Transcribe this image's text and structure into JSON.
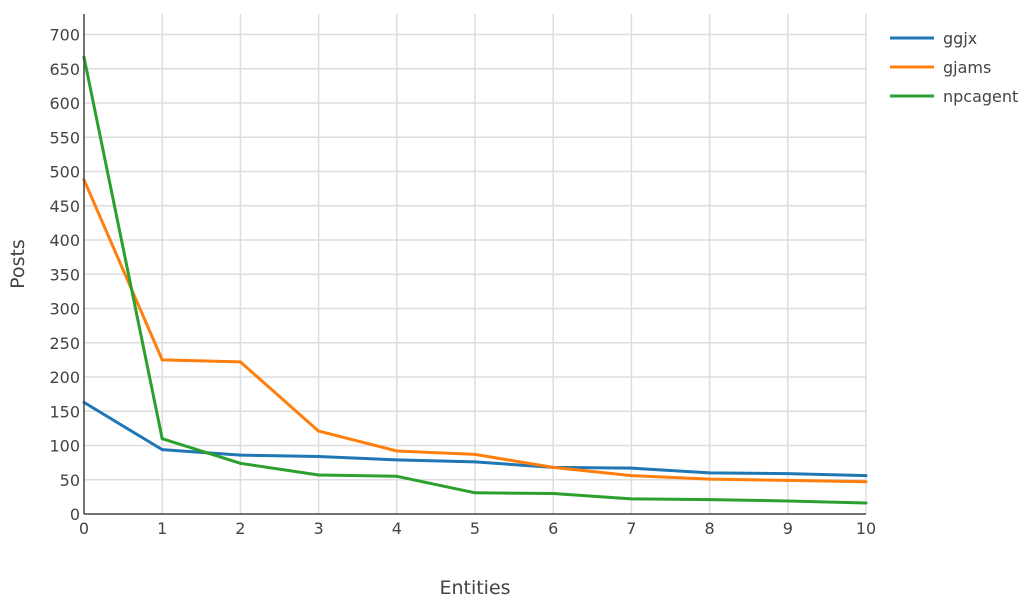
{
  "chart_data": {
    "type": "line",
    "xlabel": "Entities",
    "ylabel": "Posts",
    "xlim": [
      0,
      10
    ],
    "ylim": [
      0,
      730
    ],
    "x": [
      0,
      1,
      2,
      3,
      4,
      5,
      6,
      7,
      8,
      9,
      10
    ],
    "x_ticks": [
      "0",
      "1",
      "2",
      "3",
      "4",
      "5",
      "6",
      "7",
      "8",
      "9",
      "10"
    ],
    "y_ticks": [
      "0",
      "50",
      "100",
      "150",
      "200",
      "250",
      "300",
      "350",
      "400",
      "450",
      "500",
      "550",
      "600",
      "650",
      "700"
    ],
    "grid": true,
    "legend_position": "top-right",
    "series": [
      {
        "name": "ggjx",
        "color": "#1f77b4",
        "values": [
          163,
          94,
          86,
          84,
          79,
          76,
          68,
          67,
          60,
          59,
          56
        ]
      },
      {
        "name": "gjams",
        "color": "#ff7f0e",
        "values": [
          488,
          225,
          222,
          121,
          92,
          87,
          68,
          56,
          51,
          49,
          47
        ]
      },
      {
        "name": "npcagent",
        "color": "#2ca02c",
        "values": [
          667,
          110,
          74,
          57,
          55,
          31,
          30,
          22,
          21,
          19,
          16
        ]
      }
    ]
  }
}
